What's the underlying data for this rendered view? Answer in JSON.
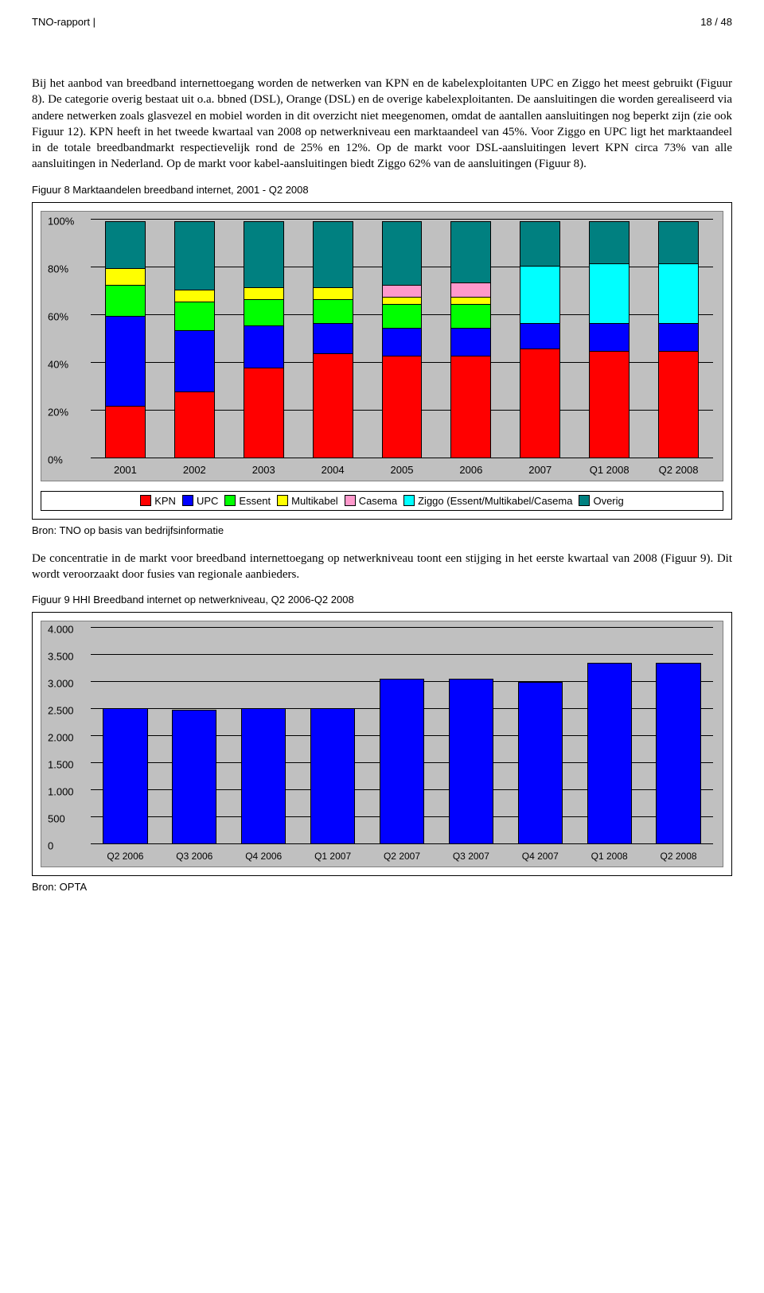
{
  "header": {
    "left": "TNO-rapport |",
    "right": "18 / 48"
  },
  "para1": "Bij het aanbod van breedband internettoegang worden de netwerken van KPN en de kabelexploitanten UPC en Ziggo het meest gebruikt (Figuur 8). De categorie overig bestaat uit o.a. bbned (DSL), Orange (DSL) en de overige kabelexploitanten. De aansluitingen die worden gerealiseerd via andere netwerken zoals glasvezel en mobiel worden in dit overzicht niet meegenomen, omdat de aantallen aansluitingen nog beperkt zijn (zie ook Figuur 12). KPN heeft in het tweede kwartaal van 2008 op netwerkniveau een marktaandeel van 45%. Voor Ziggo en UPC ligt het marktaandeel in de totale breedbandmarkt respectievelijk rond de 25% en 12%. Op de markt voor DSL-aansluitingen levert KPN circa 73% van alle aansluitingen in Nederland. Op de markt voor kabel-aansluitingen biedt Ziggo 62% van de aansluitingen (Figuur 8).",
  "fig8": {
    "caption": "Figuur 8 Marktaandelen breedband internet, 2001 - Q2 2008",
    "type": "stacked-bar",
    "background_color": "#c0c0c0",
    "ylabel_step": 20,
    "ylabels": [
      "0%",
      "20%",
      "40%",
      "60%",
      "80%",
      "100%"
    ],
    "categories": [
      "2001",
      "2002",
      "2003",
      "2004",
      "2005",
      "2006",
      "2007",
      "Q1 2008",
      "Q2 2008"
    ],
    "series": [
      {
        "name": "KPN",
        "color": "#ff0000"
      },
      {
        "name": "UPC",
        "color": "#0000ff"
      },
      {
        "name": "Essent",
        "color": "#00ff00"
      },
      {
        "name": "Multikabel",
        "color": "#ffff00"
      },
      {
        "name": "Casema",
        "color": "#ff99cc"
      },
      {
        "name": "Ziggo  (Essent/Multikabel/Casema",
        "color": "#00ffff"
      },
      {
        "name": "Overig",
        "color": "#008080"
      }
    ],
    "data": [
      [
        22,
        38,
        13,
        7,
        0,
        0,
        20
      ],
      [
        28,
        26,
        12,
        5,
        0,
        0,
        29
      ],
      [
        38,
        18,
        11,
        5,
        0,
        0,
        28
      ],
      [
        44,
        13,
        10,
        5,
        0,
        0,
        28
      ],
      [
        43,
        12,
        10,
        3,
        5,
        0,
        27
      ],
      [
        43,
        12,
        10,
        3,
        6,
        0,
        26
      ],
      [
        46,
        11,
        0,
        0,
        0,
        24,
        19
      ],
      [
        45,
        12,
        0,
        0,
        0,
        25,
        18
      ],
      [
        45,
        12,
        0,
        0,
        0,
        25,
        18
      ]
    ],
    "bar_width_pct": 6.5,
    "source": "Bron: TNO op basis van bedrijfsinformatie"
  },
  "para2": "De concentratie in de markt voor breedband internettoegang op netwerkniveau toont een stijging in het eerste kwartaal van 2008 (Figuur 9). Dit wordt veroorzaakt door fusies van regionale aanbieders.",
  "fig9": {
    "caption": "Figuur 9 HHI Breedband internet op netwerkniveau, Q2 2006-Q2 2008",
    "type": "bar",
    "background_color": "#c0c0c0",
    "bar_color": "#0000ff",
    "ymax": 4000,
    "ytick_step": 500,
    "ylabels": [
      "0",
      "500",
      "1.000",
      "1.500",
      "2.000",
      "2.500",
      "3.000",
      "3.500",
      "4.000"
    ],
    "categories": [
      "Q2 2006",
      "Q3 2006",
      "Q4 2006",
      "Q1 2007",
      "Q2 2007",
      "Q3 2007",
      "Q4 2007",
      "Q1 2008",
      "Q2 2008"
    ],
    "values": [
      2530,
      2510,
      2540,
      2540,
      3080,
      3080,
      3020,
      3380,
      3380
    ],
    "bar_width_pct": 7.2,
    "source": "Bron: OPTA"
  }
}
